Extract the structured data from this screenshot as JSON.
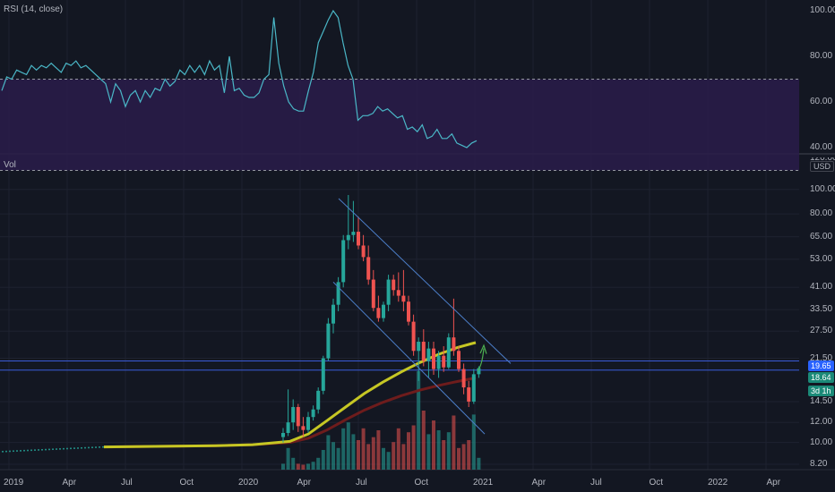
{
  "colors": {
    "background": "#131722",
    "grid": "#1e2230",
    "rsi_line": "#4ab7c7",
    "rsi_band": "#2a1c4a",
    "up": "#26a69a",
    "down": "#ef5350",
    "ma_fast": "#c6c724",
    "ma_slow": "#6e1c1c",
    "channel": "#4c7ec8",
    "hline": "#3a5bd9",
    "arrow": "#4caf50",
    "price_badge": "#2962ff",
    "price2_badge": "#1b8a78",
    "timer_badge": "#1b8a78"
  },
  "rsi_pane": {
    "title": "RSI (14, close)",
    "y_labels": [
      "100.00",
      "80.00",
      "60.00",
      "40.00"
    ],
    "upper_band": 70,
    "lower_band": 30
  },
  "price_pane": {
    "title": "Vol",
    "currency": "USD",
    "top_clipped_label": "120.00",
    "y_labels": [
      "100.00",
      "80.00",
      "65.00",
      "53.00",
      "41.00",
      "33.50",
      "27.50",
      "21.50",
      "14.50",
      "12.00",
      "10.00",
      "8.20"
    ],
    "last_price": "19.65",
    "second_price": "18.64",
    "timer": "3d 1h"
  },
  "x_axis": {
    "labels": [
      "2019",
      "Apr",
      "Jul",
      "Oct",
      "2020",
      "Apr",
      "Jul",
      "Oct",
      "2021",
      "Apr",
      "Jul",
      "Oct",
      "2022",
      "Apr"
    ]
  },
  "chart_data": {
    "type": "candlestick",
    "scale": "log",
    "y_range": [
      8,
      110
    ],
    "interval": "weekly",
    "candles_start": "2020-03-02",
    "candles": [
      {
        "o": 10.5,
        "h": 11.4,
        "l": 10.0,
        "c": 10.9
      },
      {
        "o": 10.9,
        "h": 16.2,
        "l": 10.6,
        "c": 12.0
      },
      {
        "o": 12.0,
        "h": 14.8,
        "l": 11.2,
        "c": 13.8
      },
      {
        "o": 13.8,
        "h": 14.2,
        "l": 11.0,
        "c": 11.6
      },
      {
        "o": 11.6,
        "h": 12.6,
        "l": 10.5,
        "c": 11.2
      },
      {
        "o": 11.2,
        "h": 13.2,
        "l": 10.9,
        "c": 12.6
      },
      {
        "o": 12.6,
        "h": 14.0,
        "l": 12.2,
        "c": 13.5
      },
      {
        "o": 13.5,
        "h": 16.5,
        "l": 13.0,
        "c": 16.0
      },
      {
        "o": 16.0,
        "h": 22.0,
        "l": 15.5,
        "c": 21.5
      },
      {
        "o": 21.5,
        "h": 31.0,
        "l": 21.0,
        "c": 29.5
      },
      {
        "o": 29.5,
        "h": 37.0,
        "l": 27.0,
        "c": 35.0
      },
      {
        "o": 35.0,
        "h": 45.0,
        "l": 33.0,
        "c": 43.0
      },
      {
        "o": 43.0,
        "h": 66.0,
        "l": 41.0,
        "c": 63.0
      },
      {
        "o": 63.0,
        "h": 95.0,
        "l": 58.0,
        "c": 66.0
      },
      {
        "o": 66.0,
        "h": 90.0,
        "l": 62.0,
        "c": 68.0
      },
      {
        "o": 68.0,
        "h": 78.0,
        "l": 58.0,
        "c": 60.0
      },
      {
        "o": 60.0,
        "h": 66.0,
        "l": 52.0,
        "c": 54.0
      },
      {
        "o": 54.0,
        "h": 60.0,
        "l": 42.0,
        "c": 44.0
      },
      {
        "o": 44.0,
        "h": 48.0,
        "l": 33.0,
        "c": 34.0
      },
      {
        "o": 34.0,
        "h": 38.0,
        "l": 30.0,
        "c": 31.0
      },
      {
        "o": 31.0,
        "h": 36.0,
        "l": 30.0,
        "c": 35.0
      },
      {
        "o": 35.0,
        "h": 46.0,
        "l": 33.0,
        "c": 44.0
      },
      {
        "o": 44.0,
        "h": 46.0,
        "l": 38.0,
        "c": 40.0
      },
      {
        "o": 40.0,
        "h": 47.0,
        "l": 36.0,
        "c": 38.0
      },
      {
        "o": 38.0,
        "h": 48.0,
        "l": 33.0,
        "c": 36.0
      },
      {
        "o": 36.0,
        "h": 38.0,
        "l": 29.0,
        "c": 30.0
      },
      {
        "o": 30.0,
        "h": 32.0,
        "l": 22.0,
        "c": 23.0
      },
      {
        "o": 23.0,
        "h": 26.0,
        "l": 17.5,
        "c": 25.0
      },
      {
        "o": 25.0,
        "h": 28.0,
        "l": 20.0,
        "c": 21.0
      },
      {
        "o": 21.0,
        "h": 25.0,
        "l": 18.0,
        "c": 23.5
      },
      {
        "o": 23.5,
        "h": 25.0,
        "l": 18.5,
        "c": 19.5
      },
      {
        "o": 19.5,
        "h": 23.0,
        "l": 18.0,
        "c": 22.0
      },
      {
        "o": 22.0,
        "h": 24.0,
        "l": 19.0,
        "c": 19.8
      },
      {
        "o": 19.8,
        "h": 27.0,
        "l": 19.5,
        "c": 26.0
      },
      {
        "o": 26.0,
        "h": 37.0,
        "l": 22.0,
        "c": 23.0
      },
      {
        "o": 23.0,
        "h": 24.0,
        "l": 19.0,
        "c": 19.5
      },
      {
        "o": 19.5,
        "h": 20.5,
        "l": 15.5,
        "c": 16.5
      },
      {
        "o": 16.5,
        "h": 17.5,
        "l": 13.8,
        "c": 14.5
      },
      {
        "o": 14.5,
        "h": 19.5,
        "l": 14.2,
        "c": 18.6
      },
      {
        "o": 18.6,
        "h": 20.0,
        "l": 18.0,
        "c": 19.65
      }
    ],
    "volume_relative": [
      0.06,
      0.22,
      0.12,
      0.06,
      0.05,
      0.06,
      0.08,
      0.12,
      0.2,
      0.35,
      0.28,
      0.22,
      0.42,
      0.48,
      0.36,
      0.3,
      0.42,
      0.26,
      0.33,
      0.4,
      0.22,
      0.18,
      0.28,
      0.42,
      0.26,
      0.38,
      0.45,
      1.0,
      0.6,
      0.36,
      0.5,
      0.4,
      0.3,
      0.38,
      0.55,
      0.22,
      0.26,
      0.3,
      0.56,
      0.12
    ],
    "rsi": [
      65,
      71,
      70,
      74,
      73,
      72,
      76,
      74,
      76,
      75,
      77,
      75,
      73,
      77,
      76,
      78,
      75,
      76,
      74,
      72,
      70,
      68,
      60,
      68,
      65,
      58,
      63,
      65,
      60,
      65,
      62,
      66,
      65,
      70,
      67,
      69,
      74,
      72,
      76,
      73,
      76,
      72,
      78,
      74,
      76,
      64,
      80,
      65,
      66,
      63,
      62,
      62,
      64,
      70,
      72,
      97,
      77,
      67,
      60,
      57,
      56,
      56,
      65,
      73,
      86,
      91,
      96,
      100,
      97,
      86,
      76,
      70,
      52,
      54,
      54,
      55,
      58,
      56,
      57,
      55,
      53,
      54,
      48,
      49,
      47,
      50,
      44,
      45,
      48,
      44,
      44,
      46,
      42,
      41,
      40,
      42,
      43
    ],
    "ma_fast": [
      [
        0,
        9.6
      ],
      [
        0.3,
        9.7
      ],
      [
        0.4,
        9.8
      ],
      [
        0.5,
        10.1
      ],
      [
        0.55,
        10.8
      ],
      [
        0.6,
        12.2
      ],
      [
        0.65,
        13.8
      ],
      [
        0.7,
        15.6
      ],
      [
        0.75,
        17.3
      ],
      [
        0.8,
        19.0
      ],
      [
        0.85,
        20.7
      ],
      [
        0.9,
        22.3
      ],
      [
        0.95,
        23.7
      ],
      [
        0.99,
        24.6
      ],
      [
        1,
        24.8
      ]
    ],
    "ma_slow": [
      [
        0,
        9.6
      ],
      [
        0.3,
        9.7
      ],
      [
        0.4,
        9.8
      ],
      [
        0.5,
        10.0
      ],
      [
        0.55,
        10.4
      ],
      [
        0.6,
        11.2
      ],
      [
        0.65,
        12.3
      ],
      [
        0.7,
        13.4
      ],
      [
        0.75,
        14.4
      ],
      [
        0.8,
        15.3
      ],
      [
        0.85,
        16.1
      ],
      [
        0.9,
        16.8
      ],
      [
        0.95,
        17.4
      ],
      [
        1,
        18.0
      ]
    ],
    "hlines": [
      21.0,
      19.3
    ]
  }
}
